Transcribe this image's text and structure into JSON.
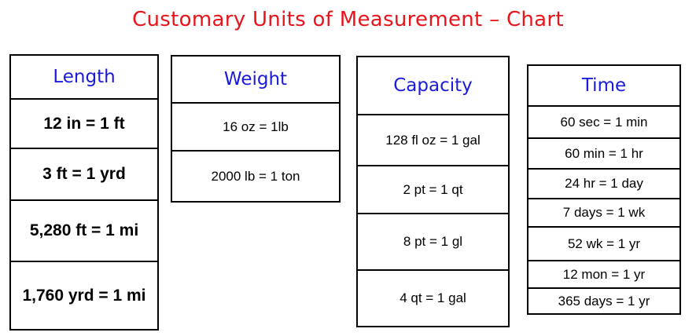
{
  "title": "Customary Units of Measurement – Chart",
  "tables": {
    "length": {
      "header": "Length",
      "rows": [
        "12 in = 1 ft",
        "3 ft = 1 yrd",
        "5,280 ft = 1 mi",
        "1,760 yrd = 1 mi"
      ]
    },
    "weight": {
      "header": "Weight",
      "rows": [
        "16 oz = 1lb",
        "2000 lb = 1 ton"
      ]
    },
    "capacity": {
      "header": "Capacity",
      "rows": [
        "128 fl oz = 1 gal",
        "2 pt = 1 qt",
        "8 pt = 1 gl",
        "4 qt = 1 gal"
      ]
    },
    "time": {
      "header": "Time",
      "rows": [
        "60 sec = 1 min",
        "60 min = 1 hr",
        "24 hr = 1 day",
        "7 days = 1 wk",
        "52 wk = 1 yr",
        "12 mon = 1 yr",
        "365 days = 1 yr"
      ]
    }
  },
  "colors": {
    "title": "#e8141c",
    "header": "#1a1adb",
    "text": "#000000"
  }
}
